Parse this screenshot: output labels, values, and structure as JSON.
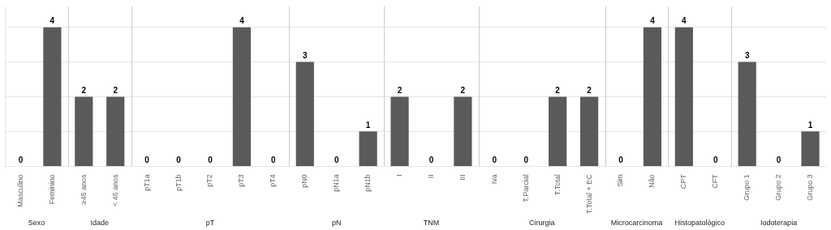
{
  "chart_data": {
    "type": "bar",
    "categories": [
      "Masculino",
      "Feminino",
      "≥45 anos",
      "< 45 anos",
      "pT1a",
      "pT1b",
      "pT2",
      "pT3",
      "pT4",
      "pN0",
      "pN1a",
      "pN1b",
      "I",
      "II",
      "III",
      "Iva",
      "T.Parcial",
      "T.Total",
      "T.Total + EC",
      "Sim",
      "Não",
      "CPT",
      "CFT",
      "Grupo 1",
      "Grupo 2",
      "Grupo 3"
    ],
    "groups": [
      "Sexo",
      "Sexo",
      "Idade",
      "Idade",
      "pT",
      "pT",
      "pT",
      "pT",
      "pT",
      "pN",
      "pN",
      "pN",
      "TNM",
      "TNM",
      "TNM",
      "Cirurgia",
      "Cirurgia",
      "Cirurgia",
      "Cirurgia",
      "Microcarcinoma",
      "Microcarcinoma",
      "Histopatológico",
      "Histopatológico",
      "Iodoterapia",
      "Iodoterapia",
      "Iodoterapia"
    ],
    "values": [
      0,
      4,
      2,
      2,
      0,
      0,
      0,
      4,
      0,
      3,
      0,
      1,
      2,
      0,
      2,
      0,
      0,
      2,
      2,
      0,
      4,
      4,
      0,
      3,
      0,
      1
    ],
    "color": "#5a5a5a",
    "ylim": [
      0,
      4.6
    ],
    "yticks": [
      1,
      2,
      3,
      4
    ],
    "grid": true,
    "data_labels": true,
    "tick_labels": "x"
  }
}
